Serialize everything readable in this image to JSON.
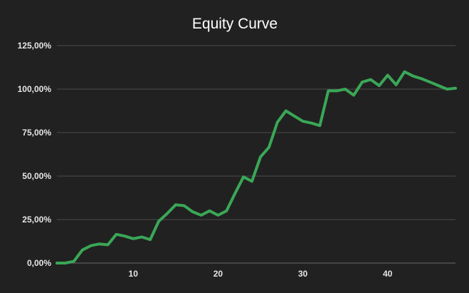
{
  "colors": {
    "background": "#212121",
    "series": "#3aa757",
    "grid": "#4a4a4a",
    "text": "#e6e6e6"
  },
  "chart_data": {
    "type": "line",
    "title": "Equity Curve",
    "xlabel": "",
    "ylabel": "",
    "xlim": [
      1,
      48
    ],
    "ylim": [
      0,
      125
    ],
    "grid": true,
    "legend": "none",
    "y_ticks": [
      {
        "value": 0,
        "label": "0,00%"
      },
      {
        "value": 25,
        "label": "25,00%"
      },
      {
        "value": 50,
        "label": "50,00%"
      },
      {
        "value": 75,
        "label": "75,00%"
      },
      {
        "value": 100,
        "label": "100,00%"
      },
      {
        "value": 125,
        "label": "125,00%"
      }
    ],
    "x_ticks": [
      {
        "value": 10,
        "label": "10"
      },
      {
        "value": 20,
        "label": "20"
      },
      {
        "value": 30,
        "label": "30"
      },
      {
        "value": 40,
        "label": "40"
      }
    ],
    "series": [
      {
        "x": [
          1,
          2,
          3,
          4,
          5,
          6,
          7,
          8,
          9,
          10,
          11,
          12,
          13,
          14,
          15,
          16,
          17,
          18,
          19,
          20,
          21,
          22,
          23,
          24,
          25,
          26,
          27,
          28,
          29,
          30,
          31,
          32,
          33,
          34,
          35,
          36,
          37,
          38,
          39,
          40,
          41,
          42,
          43,
          44,
          45,
          46,
          47,
          48
        ],
        "values": [
          0,
          0,
          1,
          7.5,
          10,
          11,
          10.5,
          16.5,
          15.5,
          14,
          15,
          13.5,
          24,
          28.5,
          33.5,
          33,
          29.5,
          27.5,
          30,
          27.5,
          30,
          40,
          49.5,
          47,
          61,
          66.5,
          81,
          87.5,
          84.5,
          81.5,
          80.5,
          79,
          99,
          99,
          100,
          96.5,
          104,
          105.5,
          102,
          108,
          102.5,
          110,
          107.5,
          106,
          104,
          102,
          100,
          100.5
        ]
      }
    ]
  }
}
